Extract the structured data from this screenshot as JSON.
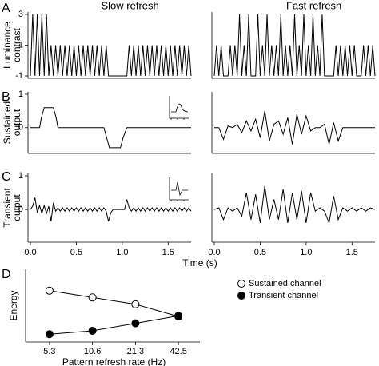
{
  "panel_labels": [
    "A",
    "B",
    "C",
    "D"
  ],
  "chart_data": [
    {
      "type": "line",
      "title": "Slow refresh",
      "ylabel": [
        "Luminance",
        "contrast"
      ],
      "xlim": [
        0,
        1.75
      ],
      "ylim": [
        -1,
        3
      ],
      "yticks": [
        3,
        1,
        -1
      ],
      "color": "#000000",
      "x": [
        0,
        0.025,
        0.05,
        0.075,
        0.1,
        0.125,
        0.15,
        0.175,
        0.2,
        0.225,
        0.25,
        0.275,
        0.3,
        0.325,
        0.35,
        0.375,
        0.4,
        0.425,
        0.45,
        0.475,
        0.5,
        0.525,
        0.55,
        0.575,
        0.6,
        0.625,
        0.65,
        0.675,
        0.7,
        0.725,
        0.75,
        0.775,
        0.8,
        0.825,
        0.85,
        1.05,
        1.075,
        1.1,
        1.125,
        1.15,
        1.175,
        1.2,
        1.225,
        1.25,
        1.275,
        1.3,
        1.325,
        1.35,
        1.375,
        1.4,
        1.425,
        1.45,
        1.475,
        1.5,
        1.525,
        1.55,
        1.575,
        1.6,
        1.625,
        1.65,
        1.675,
        1.7,
        1.725,
        1.75
      ],
      "values": [
        -1,
        3,
        -1,
        3,
        -1,
        3,
        -1,
        3,
        -1,
        1,
        -1,
        1,
        -1,
        1,
        -1,
        1,
        -1,
        1,
        -1,
        1,
        -1,
        1,
        -1,
        1,
        -1,
        1,
        -1,
        1,
        -1,
        1,
        -1,
        1,
        -1,
        1,
        -1,
        -1,
        1,
        -1,
        1,
        -1,
        1,
        -1,
        1,
        -1,
        1,
        -1,
        1,
        -1,
        1,
        -1,
        1,
        -1,
        1,
        -1,
        1,
        -1,
        1,
        -1,
        1,
        -1,
        1,
        -1,
        1,
        -1
      ]
    },
    {
      "type": "line",
      "title": "Fast refresh",
      "xlim": [
        0,
        1.75
      ],
      "ylim": [
        -1,
        3
      ],
      "color": "#000000",
      "x": [
        0,
        0.025,
        0.05,
        0.075,
        0.1,
        0.125,
        0.15,
        0.175,
        0.2,
        0.225,
        0.25,
        0.275,
        0.3,
        0.325,
        0.35,
        0.375,
        0.4,
        0.425,
        0.45,
        0.475,
        0.5,
        0.525,
        0.55,
        0.575,
        0.6,
        0.625,
        0.65,
        0.675,
        0.7,
        0.725,
        0.75,
        0.775,
        0.8,
        0.825,
        0.85,
        0.875,
        0.9,
        0.925,
        0.95,
        0.975,
        1,
        1.025,
        1.05,
        1.075,
        1.1,
        1.125,
        1.15,
        1.175,
        1.2,
        1.225,
        1.25,
        1.275,
        1.3,
        1.325,
        1.35,
        1.375,
        1.4,
        1.425,
        1.45,
        1.475,
        1.5,
        1.525,
        1.55,
        1.575,
        1.6,
        1.625,
        1.65,
        1.675,
        1.7,
        1.725,
        1.75
      ],
      "values": [
        -1,
        1,
        -1,
        1,
        -1,
        -1,
        -1,
        1,
        -1,
        1,
        -1,
        3,
        -1,
        1,
        -1,
        3,
        -1,
        -1,
        -1,
        3,
        -1,
        1,
        -1,
        3,
        -1,
        1,
        -1,
        1,
        -1,
        3,
        -1,
        1,
        -1,
        1,
        -1,
        3,
        -1,
        1,
        -1,
        3,
        -1,
        1,
        -1,
        3,
        -1,
        1,
        -1,
        3,
        -1,
        -1,
        -1,
        -1,
        -1,
        1,
        -1,
        1,
        -1,
        1,
        -1,
        1,
        -1,
        1,
        -1,
        -1,
        -1,
        1,
        -1,
        1,
        -1,
        1,
        -1
      ]
    },
    {
      "type": "line",
      "ylabel": [
        "Sustained",
        "output"
      ],
      "xlim": [
        0,
        1.75
      ],
      "ylim": [
        -0.7,
        1
      ],
      "yticks": [
        1,
        0
      ],
      "color": "#000000",
      "x": [
        0,
        0.1,
        0.12,
        0.15,
        0.25,
        0.28,
        0.3,
        0.8,
        0.83,
        0.86,
        0.98,
        1.01,
        1.05,
        1.75
      ],
      "values": [
        0,
        0,
        0.3,
        0.6,
        0.6,
        0.3,
        0,
        0,
        -0.3,
        -0.6,
        -0.6,
        -0.3,
        0,
        0
      ]
    },
    {
      "type": "line",
      "xlim": [
        0,
        1.75
      ],
      "ylim": [
        -0.7,
        1
      ],
      "color": "#000000",
      "x": [
        0,
        0.05,
        0.1,
        0.15,
        0.2,
        0.25,
        0.3,
        0.35,
        0.4,
        0.45,
        0.5,
        0.55,
        0.6,
        0.65,
        0.7,
        0.75,
        0.8,
        0.85,
        0.9,
        0.95,
        1,
        1.05,
        1.1,
        1.15,
        1.2,
        1.25,
        1.3,
        1.35,
        1.4,
        1.45,
        1.5,
        1.55,
        1.6,
        1.65,
        1.7,
        1.75
      ],
      "values": [
        0,
        0,
        -0.35,
        0.05,
        0,
        0.1,
        -0.15,
        0.2,
        -0.1,
        0.25,
        -0.3,
        0.5,
        -0.4,
        0.1,
        0.2,
        -0.2,
        0.3,
        -0.5,
        0.4,
        -0.2,
        0.35,
        -0.1,
        0,
        0,
        0.1,
        -0.5,
        0.15,
        -0.4,
        0,
        0,
        0,
        0,
        0,
        0,
        0,
        0
      ]
    },
    {
      "type": "line",
      "ylabel": [
        "Transient",
        "output"
      ],
      "xlim": [
        0,
        1.75
      ],
      "ylim": [
        -0.9,
        1
      ],
      "yticks": [
        1,
        0
      ],
      "xticks": [
        {
          "value": 0,
          "label": "0.0"
        },
        0.5,
        {
          "value": 1,
          "label": "1.0"
        },
        1.5
      ],
      "color": "#000000",
      "x": [
        0,
        0.025,
        0.05,
        0.075,
        0.1,
        0.125,
        0.15,
        0.175,
        0.2,
        0.225,
        0.25,
        0.275,
        0.3,
        0.325,
        0.35,
        0.375,
        0.4,
        0.425,
        0.45,
        0.475,
        0.5,
        0.525,
        0.55,
        0.575,
        0.6,
        0.625,
        0.65,
        0.675,
        0.7,
        0.725,
        0.75,
        0.775,
        0.8,
        0.825,
        0.85,
        0.875,
        0.9,
        0.925,
        0.95,
        0.975,
        1,
        1.025,
        1.05,
        1.075,
        1.1,
        1.125,
        1.15,
        1.175,
        1.2,
        1.225,
        1.25,
        1.275,
        1.3,
        1.325,
        1.35,
        1.375,
        1.4,
        1.425,
        1.45,
        1.475,
        1.5,
        1.525,
        1.55,
        1.575,
        1.6,
        1.625,
        1.65,
        1.675,
        1.7,
        1.725,
        1.75
      ],
      "values": [
        0,
        0.1,
        0.35,
        -0.1,
        0.12,
        -0.12,
        0.12,
        -0.12,
        0.1,
        -0.35,
        0.2,
        -0.05,
        0.05,
        -0.05,
        0.05,
        -0.05,
        0.05,
        -0.05,
        0.05,
        -0.05,
        0.05,
        -0.05,
        0.05,
        -0.05,
        0.05,
        -0.05,
        0.05,
        -0.05,
        0.05,
        -0.05,
        0.05,
        -0.05,
        0.05,
        -0.05,
        -0.35,
        -0.1,
        0,
        0,
        0,
        0,
        0,
        0,
        0.3,
        0.05,
        -0.05,
        0.05,
        -0.05,
        0.05,
        -0.05,
        0.05,
        -0.05,
        0.05,
        -0.05,
        0.05,
        -0.05,
        0.05,
        -0.05,
        0.05,
        -0.05,
        0.05,
        -0.05,
        0.05,
        -0.05,
        0.05,
        -0.05,
        0.05,
        -0.05,
        0.05,
        -0.05,
        0.05,
        -0.05
      ]
    },
    {
      "type": "line",
      "xlabel": "Time (s)",
      "xlim": [
        0,
        1.75
      ],
      "ylim": [
        -0.9,
        1
      ],
      "xticks": [
        {
          "value": 0,
          "label": "0.0"
        },
        0.5,
        {
          "value": 1,
          "label": "1.0"
        },
        1.5
      ],
      "color": "#000000",
      "x": [
        0,
        0.05,
        0.1,
        0.15,
        0.2,
        0.25,
        0.3,
        0.35,
        0.4,
        0.45,
        0.5,
        0.55,
        0.6,
        0.65,
        0.7,
        0.75,
        0.8,
        0.85,
        0.9,
        0.95,
        1,
        1.05,
        1.1,
        1.15,
        1.2,
        1.25,
        1.3,
        1.35,
        1.4,
        1.45,
        1.5,
        1.55,
        1.6,
        1.65,
        1.7,
        1.75
      ],
      "values": [
        0,
        0.05,
        -0.3,
        0.05,
        -0.05,
        0.05,
        -0.2,
        0.5,
        -0.3,
        0.45,
        -0.4,
        0.7,
        -0.3,
        0.3,
        -0.3,
        0.6,
        -0.4,
        0.5,
        -0.3,
        0.55,
        -0.4,
        0.5,
        -0.05,
        0.05,
        -0.05,
        -0.4,
        0.4,
        -0.3,
        0.05,
        -0.05,
        0.05,
        -0.05,
        0.05,
        -0.05,
        0.05,
        0
      ]
    },
    {
      "type": "line",
      "xlabel": "Pattern refresh rate (Hz)",
      "ylabel": "Energy",
      "categories": [
        "5.3",
        "10.6",
        "21.3",
        "42.5"
      ],
      "ylim": [
        0,
        10
      ],
      "legend": "right",
      "series": [
        {
          "name": "Sustained channel",
          "color": "#000000",
          "marker_fill": "#ffffff",
          "values": [
            7.2,
            6.2,
            5.2,
            3.4
          ]
        },
        {
          "name": "Transient channel",
          "color": "#000000",
          "marker_fill": "#000000",
          "values": [
            0.8,
            1.3,
            2.4,
            3.5
          ]
        }
      ]
    }
  ]
}
